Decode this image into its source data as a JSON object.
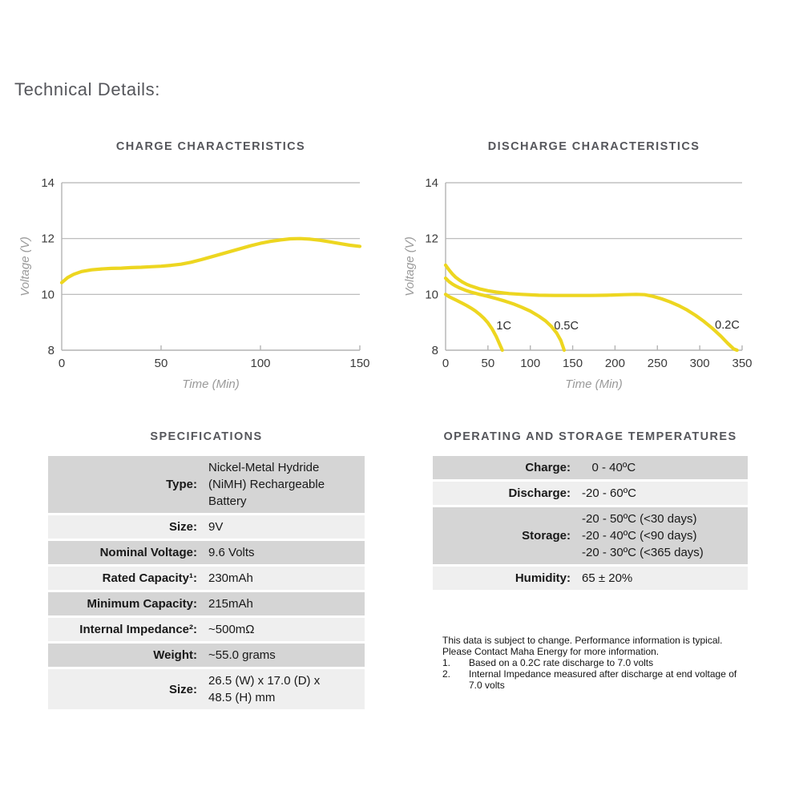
{
  "page": {
    "heading": "Technical Details:"
  },
  "colors": {
    "accent_yellow": "#EDD620",
    "grid_gray": "#b4b4b4",
    "axis_text": "#3b3b3b",
    "axis_title_gray": "#9a9a9a",
    "heading_gray": "#55565b",
    "row_dark": "#d5d5d5",
    "row_light": "#efefef"
  },
  "chart_data": [
    {
      "type": "line",
      "name": "charge-characteristics",
      "title": "CHARGE CHARACTERISTICS",
      "xlabel": "Time (Min)",
      "ylabel": "Voltage (V)",
      "xlim": [
        0,
        150
      ],
      "ylim": [
        8,
        14
      ],
      "x_ticks": [
        0,
        50,
        100,
        150
      ],
      "y_ticks": [
        8,
        10,
        12,
        14
      ],
      "grid": "horizontal",
      "legend": "none",
      "series": [
        {
          "name": "charge-curve",
          "points": [
            [
              0,
              10.42
            ],
            [
              3,
              10.6
            ],
            [
              6,
              10.72
            ],
            [
              10,
              10.82
            ],
            [
              15,
              10.88
            ],
            [
              20,
              10.91
            ],
            [
              25,
              10.93
            ],
            [
              30,
              10.94
            ],
            [
              35,
              10.96
            ],
            [
              40,
              10.97
            ],
            [
              45,
              10.99
            ],
            [
              50,
              11.01
            ],
            [
              55,
              11.04
            ],
            [
              60,
              11.08
            ],
            [
              65,
              11.15
            ],
            [
              70,
              11.24
            ],
            [
              75,
              11.34
            ],
            [
              80,
              11.44
            ],
            [
              85,
              11.54
            ],
            [
              90,
              11.64
            ],
            [
              95,
              11.74
            ],
            [
              100,
              11.83
            ],
            [
              105,
              11.9
            ],
            [
              110,
              11.95
            ],
            [
              115,
              11.99
            ],
            [
              120,
              12.0
            ],
            [
              125,
              11.98
            ],
            [
              130,
              11.94
            ],
            [
              135,
              11.88
            ],
            [
              140,
              11.82
            ],
            [
              145,
              11.76
            ],
            [
              150,
              11.72
            ]
          ]
        }
      ]
    },
    {
      "type": "line",
      "name": "discharge-characteristics",
      "title": "DISCHARGE CHARACTERISTICS",
      "xlabel": "Time (Min)",
      "ylabel": "Voltage (V)",
      "xlim": [
        0,
        350
      ],
      "ylim": [
        8,
        14
      ],
      "x_ticks": [
        0,
        50,
        100,
        150,
        200,
        250,
        300,
        350
      ],
      "y_ticks": [
        8,
        10,
        12,
        14
      ],
      "grid": "horizontal",
      "legend": "inline-labels",
      "series": [
        {
          "name": "discharge-1C",
          "label": "1C",
          "label_at": [
            60,
            8.75
          ],
          "points": [
            [
              0,
              10.0
            ],
            [
              4,
              9.92
            ],
            [
              8,
              9.86
            ],
            [
              12,
              9.8
            ],
            [
              16,
              9.74
            ],
            [
              20,
              9.68
            ],
            [
              25,
              9.6
            ],
            [
              30,
              9.51
            ],
            [
              35,
              9.41
            ],
            [
              40,
              9.29
            ],
            [
              45,
              9.15
            ],
            [
              50,
              8.98
            ],
            [
              55,
              8.76
            ],
            [
              60,
              8.48
            ],
            [
              64,
              8.2
            ],
            [
              67,
              8.0
            ]
          ]
        },
        {
          "name": "discharge-0.5C",
          "label": "0.5C",
          "label_at": [
            128,
            8.75
          ],
          "points": [
            [
              0,
              10.58
            ],
            [
              4,
              10.46
            ],
            [
              8,
              10.37
            ],
            [
              12,
              10.3
            ],
            [
              16,
              10.24
            ],
            [
              20,
              10.19
            ],
            [
              25,
              10.13
            ],
            [
              30,
              10.08
            ],
            [
              35,
              10.04
            ],
            [
              40,
              10.0
            ],
            [
              50,
              9.93
            ],
            [
              60,
              9.85
            ],
            [
              70,
              9.76
            ],
            [
              80,
              9.66
            ],
            [
              90,
              9.54
            ],
            [
              100,
              9.4
            ],
            [
              110,
              9.22
            ],
            [
              118,
              9.05
            ],
            [
              125,
              8.85
            ],
            [
              131,
              8.62
            ],
            [
              136,
              8.35
            ],
            [
              140,
              8.0
            ]
          ]
        },
        {
          "name": "discharge-0.2C",
          "label": "0.2C",
          "label_at": [
            318,
            8.78
          ],
          "points": [
            [
              0,
              11.05
            ],
            [
              4,
              10.88
            ],
            [
              8,
              10.73
            ],
            [
              12,
              10.61
            ],
            [
              16,
              10.52
            ],
            [
              20,
              10.44
            ],
            [
              25,
              10.36
            ],
            [
              30,
              10.3
            ],
            [
              40,
              10.2
            ],
            [
              50,
              10.13
            ],
            [
              60,
              10.08
            ],
            [
              75,
              10.03
            ],
            [
              90,
              10.0
            ],
            [
              110,
              9.97
            ],
            [
              130,
              9.96
            ],
            [
              150,
              9.96
            ],
            [
              170,
              9.96
            ],
            [
              190,
              9.97
            ],
            [
              210,
              9.99
            ],
            [
              225,
              10.0
            ],
            [
              235,
              9.99
            ],
            [
              245,
              9.93
            ],
            [
              255,
              9.84
            ],
            [
              265,
              9.73
            ],
            [
              275,
              9.6
            ],
            [
              285,
              9.44
            ],
            [
              295,
              9.25
            ],
            [
              305,
              9.03
            ],
            [
              315,
              8.78
            ],
            [
              325,
              8.5
            ],
            [
              333,
              8.25
            ],
            [
              340,
              8.05
            ],
            [
              344,
              8.0
            ]
          ]
        }
      ]
    }
  ],
  "spec_table": {
    "title": "SPECIFICATIONS",
    "rows": [
      {
        "label": "Type:",
        "value": "Nickel-Metal Hydride\n(NiMH) Rechargeable\nBattery"
      },
      {
        "label": "Size:",
        "value": "9V"
      },
      {
        "label": "Nominal Voltage:",
        "value": "9.6 Volts"
      },
      {
        "label": "Rated Capacity¹:",
        "value": "230mAh"
      },
      {
        "label": "Minimum Capacity:",
        "value": "215mAh"
      },
      {
        "label": "Internal Impedance²:",
        "value": "~500mΩ"
      },
      {
        "label": "Weight:",
        "value": "~55.0 grams"
      },
      {
        "label": "Size:",
        "value": "26.5 (W) x 17.0 (D)  x\n48.5 (H) mm"
      }
    ]
  },
  "temp_table": {
    "title": "OPERATING AND STORAGE TEMPERATURES",
    "rows": [
      {
        "label": "Charge:",
        "value": "   0 - 40ºC"
      },
      {
        "label": "Discharge:",
        "value": "-20 - 60ºC"
      },
      {
        "label": "Storage:",
        "value": "-20 - 50ºC (<30 days)\n-20 - 40ºC (<90 days)\n-20 - 30ºC (<365 days)"
      },
      {
        "label": "Humidity:",
        "value": "65 ± 20%"
      }
    ]
  },
  "footnote": {
    "para": "This data is subject to change.  Performance information is typical.\nPlease Contact Maha Energy for more information.",
    "items": [
      {
        "num": "1.",
        "text": "Based on a 0.2C rate discharge to 7.0 volts"
      },
      {
        "num": "2.",
        "text": "Internal Impedance measured after discharge at end voltage of 7.0 volts"
      }
    ]
  }
}
